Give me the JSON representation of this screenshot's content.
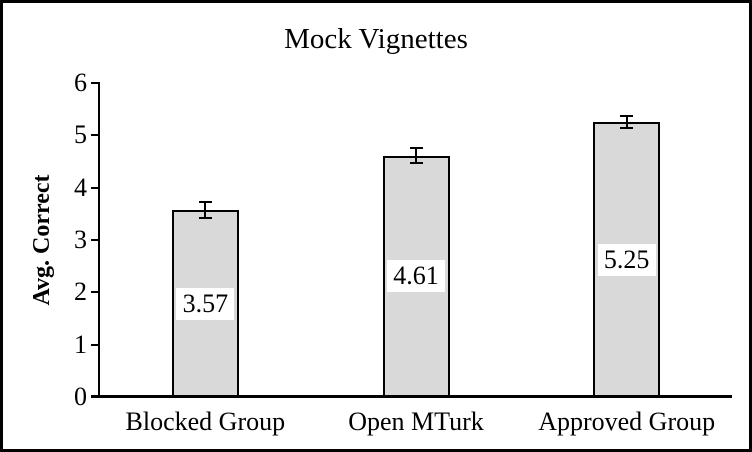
{
  "chart_data": {
    "type": "bar",
    "title": "Mock Vignettes",
    "xlabel": "",
    "ylabel": "Avg. Correct",
    "categories": [
      "Blocked Group",
      "Open MTurk",
      "Approved Group"
    ],
    "values": [
      3.57,
      4.61,
      5.25
    ],
    "value_labels": [
      "3.57",
      "4.61",
      "5.25"
    ],
    "errors": [
      0.15,
      0.14,
      0.11
    ],
    "ylim": [
      0,
      6
    ],
    "yticks": [
      0,
      1,
      2,
      3,
      4,
      5,
      6
    ],
    "grid": false,
    "legend": null,
    "bar_fill_color": "#d9d9d9",
    "bar_border_color": "#000000",
    "axis_color": "#000000",
    "frame_color": "#000000",
    "background_color": "#ffffff",
    "value_label_style": "white box centered inside bar",
    "error_bar_style": "capped, plus-minus, at bar top"
  }
}
